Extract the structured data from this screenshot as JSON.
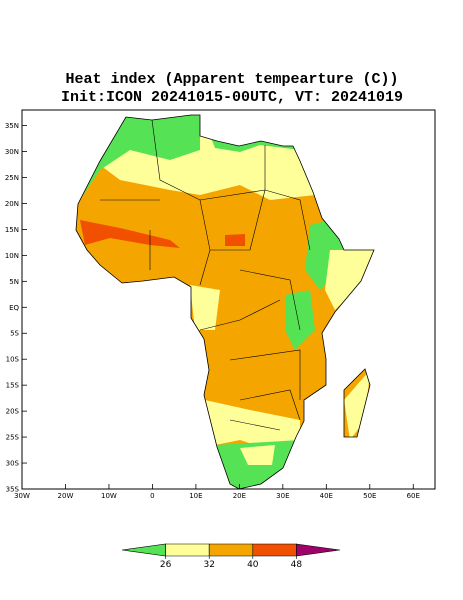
{
  "map": {
    "title": "Heat index (Apparent tempearture (C))",
    "subtitle": "Init:ICON 20241015-00UTC, VT: 20241019",
    "xlim": [
      -30,
      65
    ],
    "ylim": [
      -35,
      38
    ],
    "xticks": [
      {
        "value": -30,
        "label": "30W"
      },
      {
        "value": -20,
        "label": "20W"
      },
      {
        "value": -10,
        "label": "10W"
      },
      0,
      {
        "value": 10,
        "label": "10E"
      },
      {
        "value": 20,
        "label": "20E"
      },
      {
        "value": 30,
        "label": "30E"
      },
      {
        "value": 40,
        "label": "40E"
      },
      {
        "value": 50,
        "label": "50E"
      },
      {
        "value": 60,
        "label": "60E"
      }
    ],
    "yticks": [
      {
        "value": 35,
        "label": "35N"
      },
      {
        "value": 30,
        "label": "30N"
      },
      {
        "value": 25,
        "label": "25N"
      },
      {
        "value": 20,
        "label": "20N"
      },
      {
        "value": 15,
        "label": "15N"
      },
      {
        "value": 10,
        "label": "10N"
      },
      {
        "value": 5,
        "label": "5N"
      },
      {
        "value": 0,
        "label": "EQ"
      },
      {
        "value": -5,
        "label": "5S"
      },
      {
        "value": -10,
        "label": "10S"
      },
      {
        "value": -15,
        "label": "15S"
      },
      {
        "value": -20,
        "label": "20S"
      },
      {
        "value": -25,
        "label": "25S"
      },
      {
        "value": -30,
        "label": "30S"
      },
      {
        "value": -35,
        "label": "35S"
      }
    ],
    "colorbar": {
      "ticks": [
        26,
        32,
        40,
        48
      ],
      "colors": [
        "#55e355",
        "#ffff99",
        "#f5a500",
        "#f05000",
        "#a0006a"
      ]
    }
  }
}
